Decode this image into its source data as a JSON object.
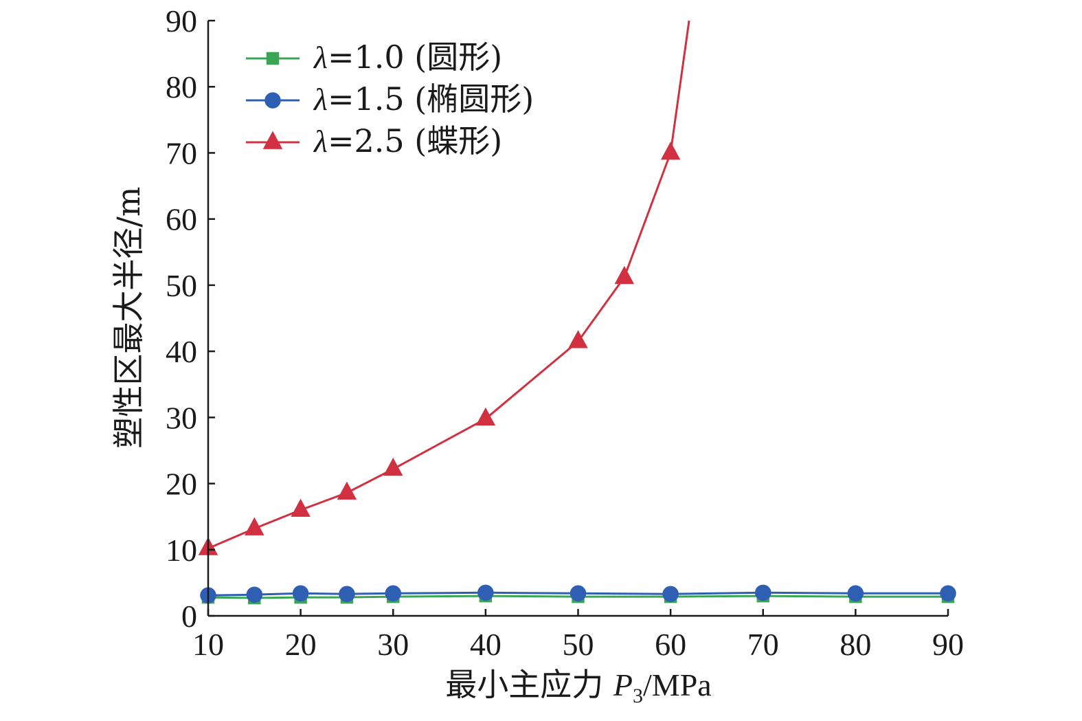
{
  "chart_data": {
    "type": "line",
    "title": "",
    "xlabel_main": "最小主应力 ",
    "xlabel_var": "P",
    "xlabel_sub": "3",
    "xlabel_unit": "/MPa",
    "ylabel": "塑性区最大半径/m",
    "xlim": [
      10,
      90
    ],
    "ylim": [
      0,
      90
    ],
    "xticks": [
      "10",
      "20",
      "30",
      "40",
      "50",
      "60",
      "70",
      "80",
      "90"
    ],
    "yticks": [
      "0",
      "10",
      "20",
      "30",
      "40",
      "50",
      "60",
      "70",
      "80",
      "90"
    ],
    "grid": false,
    "legend_position": "top-left",
    "series": [
      {
        "name": "λ=1.0 (圆形)",
        "name_var": "λ",
        "name_rest": "=1.0 (圆形)",
        "color": "#3aa655",
        "marker": "square",
        "points": [
          [
            10,
            2.8
          ],
          [
            15,
            2.7
          ],
          [
            20,
            2.8
          ],
          [
            25,
            2.8
          ],
          [
            30,
            2.9
          ],
          [
            40,
            3.0
          ],
          [
            50,
            2.9
          ],
          [
            60,
            2.9
          ],
          [
            70,
            3.0
          ],
          [
            80,
            2.9
          ],
          [
            90,
            2.9
          ]
        ],
        "tail": []
      },
      {
        "name": "λ=1.5 (椭圆形)",
        "name_var": "λ",
        "name_rest": "=1.5 (椭圆形)",
        "color": "#2e5fb3",
        "marker": "circle",
        "points": [
          [
            10,
            3.1
          ],
          [
            15,
            3.2
          ],
          [
            20,
            3.4
          ],
          [
            25,
            3.3
          ],
          [
            30,
            3.4
          ],
          [
            40,
            3.5
          ],
          [
            50,
            3.4
          ],
          [
            60,
            3.3
          ],
          [
            70,
            3.5
          ],
          [
            80,
            3.4
          ],
          [
            90,
            3.4
          ]
        ],
        "tail": []
      },
      {
        "name": "λ=2.5 (蝶形)",
        "name_var": "λ",
        "name_rest": "=2.5 (蝶形)",
        "color": "#d03040",
        "marker": "triangle",
        "points": [
          [
            10,
            10.2
          ],
          [
            15,
            13.2
          ],
          [
            20,
            16.0
          ],
          [
            25,
            18.6
          ],
          [
            30,
            22.2
          ],
          [
            40,
            29.8
          ],
          [
            50,
            41.5
          ],
          [
            55,
            51.2
          ],
          [
            60,
            70.0
          ]
        ],
        "tail": [
          [
            61,
            80.0
          ],
          [
            62,
            90.0
          ]
        ]
      }
    ]
  }
}
